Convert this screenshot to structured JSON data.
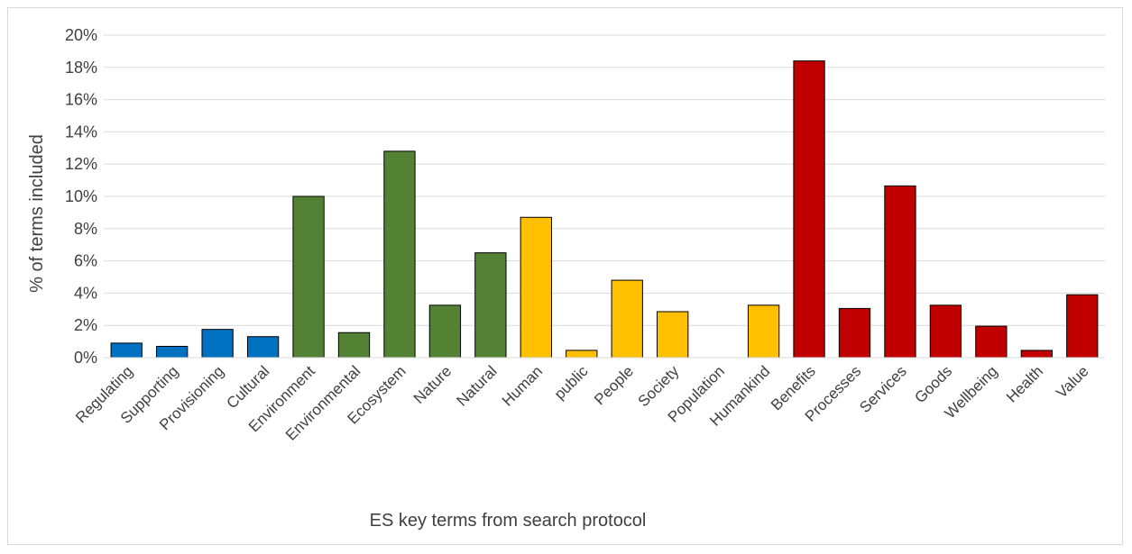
{
  "chart_data": {
    "type": "bar",
    "title": "",
    "xlabel": "ES key terms from search protocol",
    "ylabel": "% of terms included",
    "ylim": [
      0,
      20
    ],
    "ytick_step": 2,
    "ytick_suffix": "%",
    "grid": true,
    "legend": "none",
    "categories": [
      "Regulating",
      "Supporting",
      "Provisioning",
      "Cultural",
      "Environment",
      "Environmental",
      "Ecosystem",
      "Nature",
      "Natural",
      "Human",
      "public",
      "People",
      "Society",
      "Population",
      "Humankind",
      "Benefits",
      "Processes",
      "Services",
      "Goods",
      "Wellbeing",
      "Health",
      "Value"
    ],
    "values": [
      0.9,
      0.7,
      1.75,
      1.3,
      10.0,
      1.55,
      12.8,
      3.25,
      6.5,
      8.7,
      0.45,
      4.8,
      2.85,
      0,
      3.25,
      18.4,
      3.05,
      10.65,
      3.25,
      1.95,
      0.45,
      3.9
    ],
    "bar_colors": [
      "#0070c0",
      "#0070c0",
      "#0070c0",
      "#0070c0",
      "#548235",
      "#548235",
      "#548235",
      "#548235",
      "#548235",
      "#ffc000",
      "#ffc000",
      "#ffc000",
      "#ffc000",
      "#ffc000",
      "#ffc000",
      "#c00000",
      "#c00000",
      "#c00000",
      "#c00000",
      "#c00000",
      "#c00000",
      "#c00000"
    ]
  }
}
